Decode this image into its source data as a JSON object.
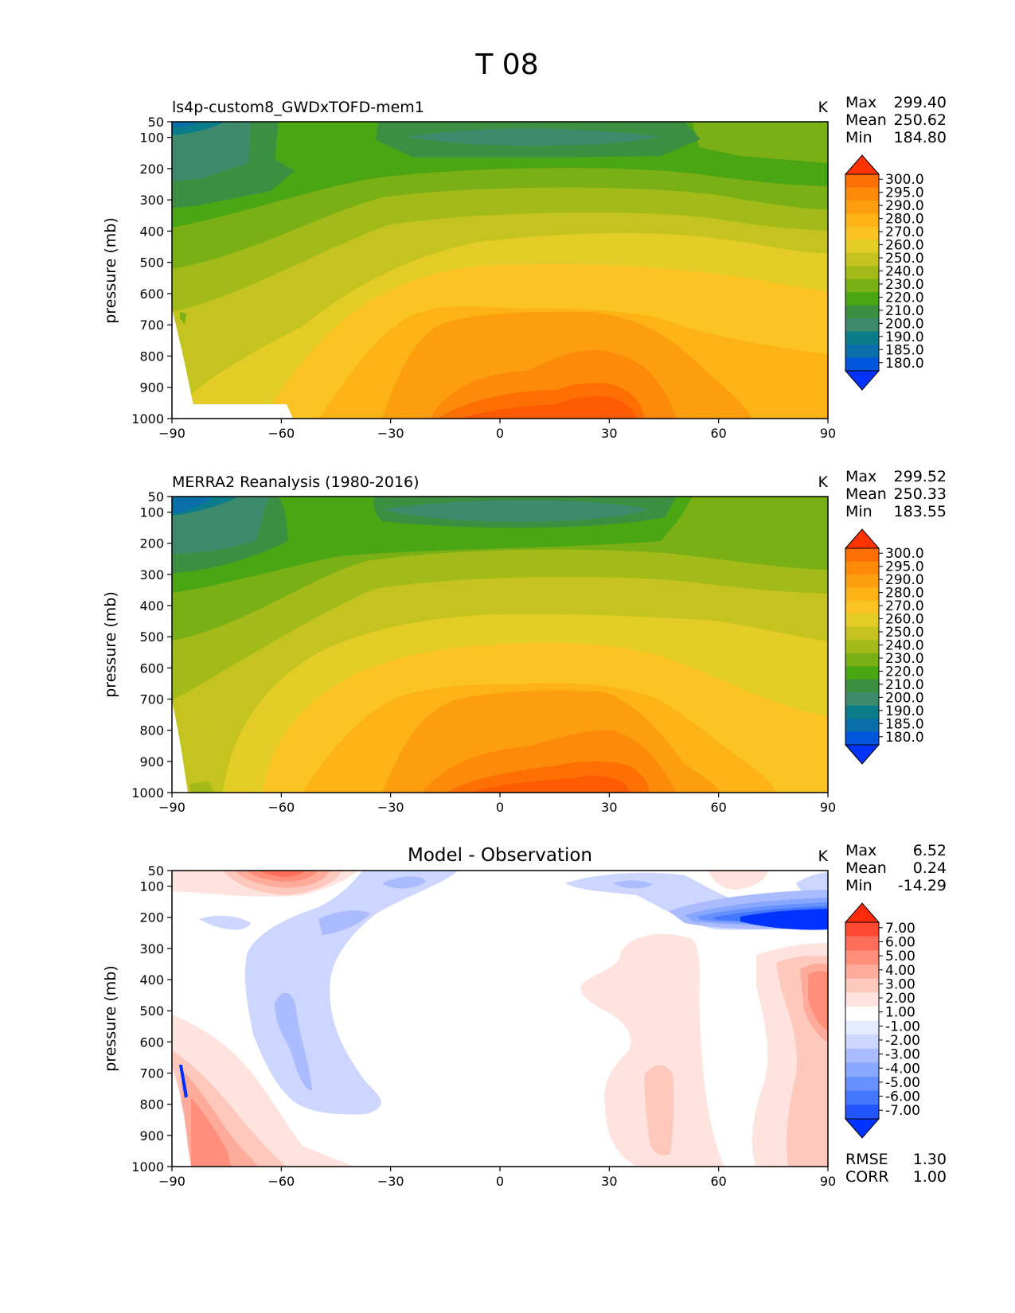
{
  "figure_title": "T 08",
  "colors": {
    "abs_scale": [
      "#0033ff",
      "#0055dd",
      "#0a6fa8",
      "#0b7d8a",
      "#3d8a6d",
      "#3a9040",
      "#4ba614",
      "#7ab016",
      "#a3bb18",
      "#c4c31f",
      "#e2cc25",
      "#fbc422",
      "#fdb215",
      "#fd9e0f",
      "#fd8a08",
      "#fd6e03",
      "#ff3300"
    ],
    "diff_scale": [
      "#0033ff",
      "#2255ff",
      "#4477ff",
      "#6690ff",
      "#88a8ff",
      "#aabbff",
      "#cdd6ff",
      "#e6ecff",
      "#ffffff",
      "#ffe3de",
      "#ffc8bd",
      "#ffab9c",
      "#ff8e7a",
      "#ff6e5a",
      "#ff4a33",
      "#ff2a0a"
    ],
    "land_mask": "#ffffff"
  },
  "chart_data": [
    {
      "type": "heatmap",
      "panel_title": "ls4p-custom8_GWDxTOFD-mem1",
      "unit": "K",
      "ylabel": "pressure (mb)",
      "x_ticks": [
        "−90",
        "−60",
        "−30",
        "0",
        "30",
        "60",
        "90"
      ],
      "y_ticks": [
        "50",
        "100",
        "200",
        "300",
        "400",
        "500",
        "600",
        "700",
        "800",
        "900",
        "1000"
      ],
      "xlim": [
        -90,
        90
      ],
      "ylim": [
        50,
        1000
      ],
      "stats": {
        "max_label": "Max",
        "max": "299.40",
        "mean_label": "Mean",
        "mean": "250.62",
        "min_label": "Min",
        "min": "184.80"
      },
      "colorbar_levels": [
        "300.0",
        "295.0",
        "290.0",
        "280.0",
        "270.0",
        "260.0",
        "250.0",
        "240.0",
        "230.0",
        "220.0",
        "210.0",
        "200.0",
        "190.0",
        "185.0",
        "180.0"
      ]
    },
    {
      "type": "heatmap",
      "panel_title": "MERRA2 Reanalysis (1980-2016)",
      "unit": "K",
      "ylabel": "pressure (mb)",
      "x_ticks": [
        "−90",
        "−60",
        "−30",
        "0",
        "30",
        "60",
        "90"
      ],
      "y_ticks": [
        "50",
        "100",
        "200",
        "300",
        "400",
        "500",
        "600",
        "700",
        "800",
        "900",
        "1000"
      ],
      "xlim": [
        -90,
        90
      ],
      "ylim": [
        50,
        1000
      ],
      "stats": {
        "max_label": "Max",
        "max": "299.52",
        "mean_label": "Mean",
        "mean": "250.33",
        "min_label": "Min",
        "min": "183.55"
      },
      "colorbar_levels": [
        "300.0",
        "295.0",
        "290.0",
        "280.0",
        "270.0",
        "260.0",
        "250.0",
        "240.0",
        "230.0",
        "220.0",
        "210.0",
        "200.0",
        "190.0",
        "185.0",
        "180.0"
      ]
    },
    {
      "type": "heatmap",
      "panel_title": "Model - Observation",
      "unit": "K",
      "ylabel": "pressure (mb)",
      "x_ticks": [
        "−90",
        "−60",
        "−30",
        "0",
        "30",
        "60",
        "90"
      ],
      "y_ticks": [
        "50",
        "100",
        "200",
        "300",
        "400",
        "500",
        "600",
        "700",
        "800",
        "900",
        "1000"
      ],
      "xlim": [
        -90,
        90
      ],
      "ylim": [
        50,
        1000
      ],
      "stats": {
        "max_label": "Max",
        "max": "6.52",
        "mean_label": "Mean",
        "mean": "0.24",
        "min_label": "Min",
        "min": "-14.29"
      },
      "colorbar_levels": [
        "7.00",
        "6.00",
        "5.00",
        "4.00",
        "3.00",
        "2.00",
        "1.00",
        "-1.00",
        "-2.00",
        "-3.00",
        "-4.00",
        "-5.00",
        "-6.00",
        "-7.00"
      ],
      "metrics": {
        "rmse_label": "RMSE",
        "rmse": "1.30",
        "corr_label": "CORR",
        "corr": "1.00"
      }
    }
  ]
}
